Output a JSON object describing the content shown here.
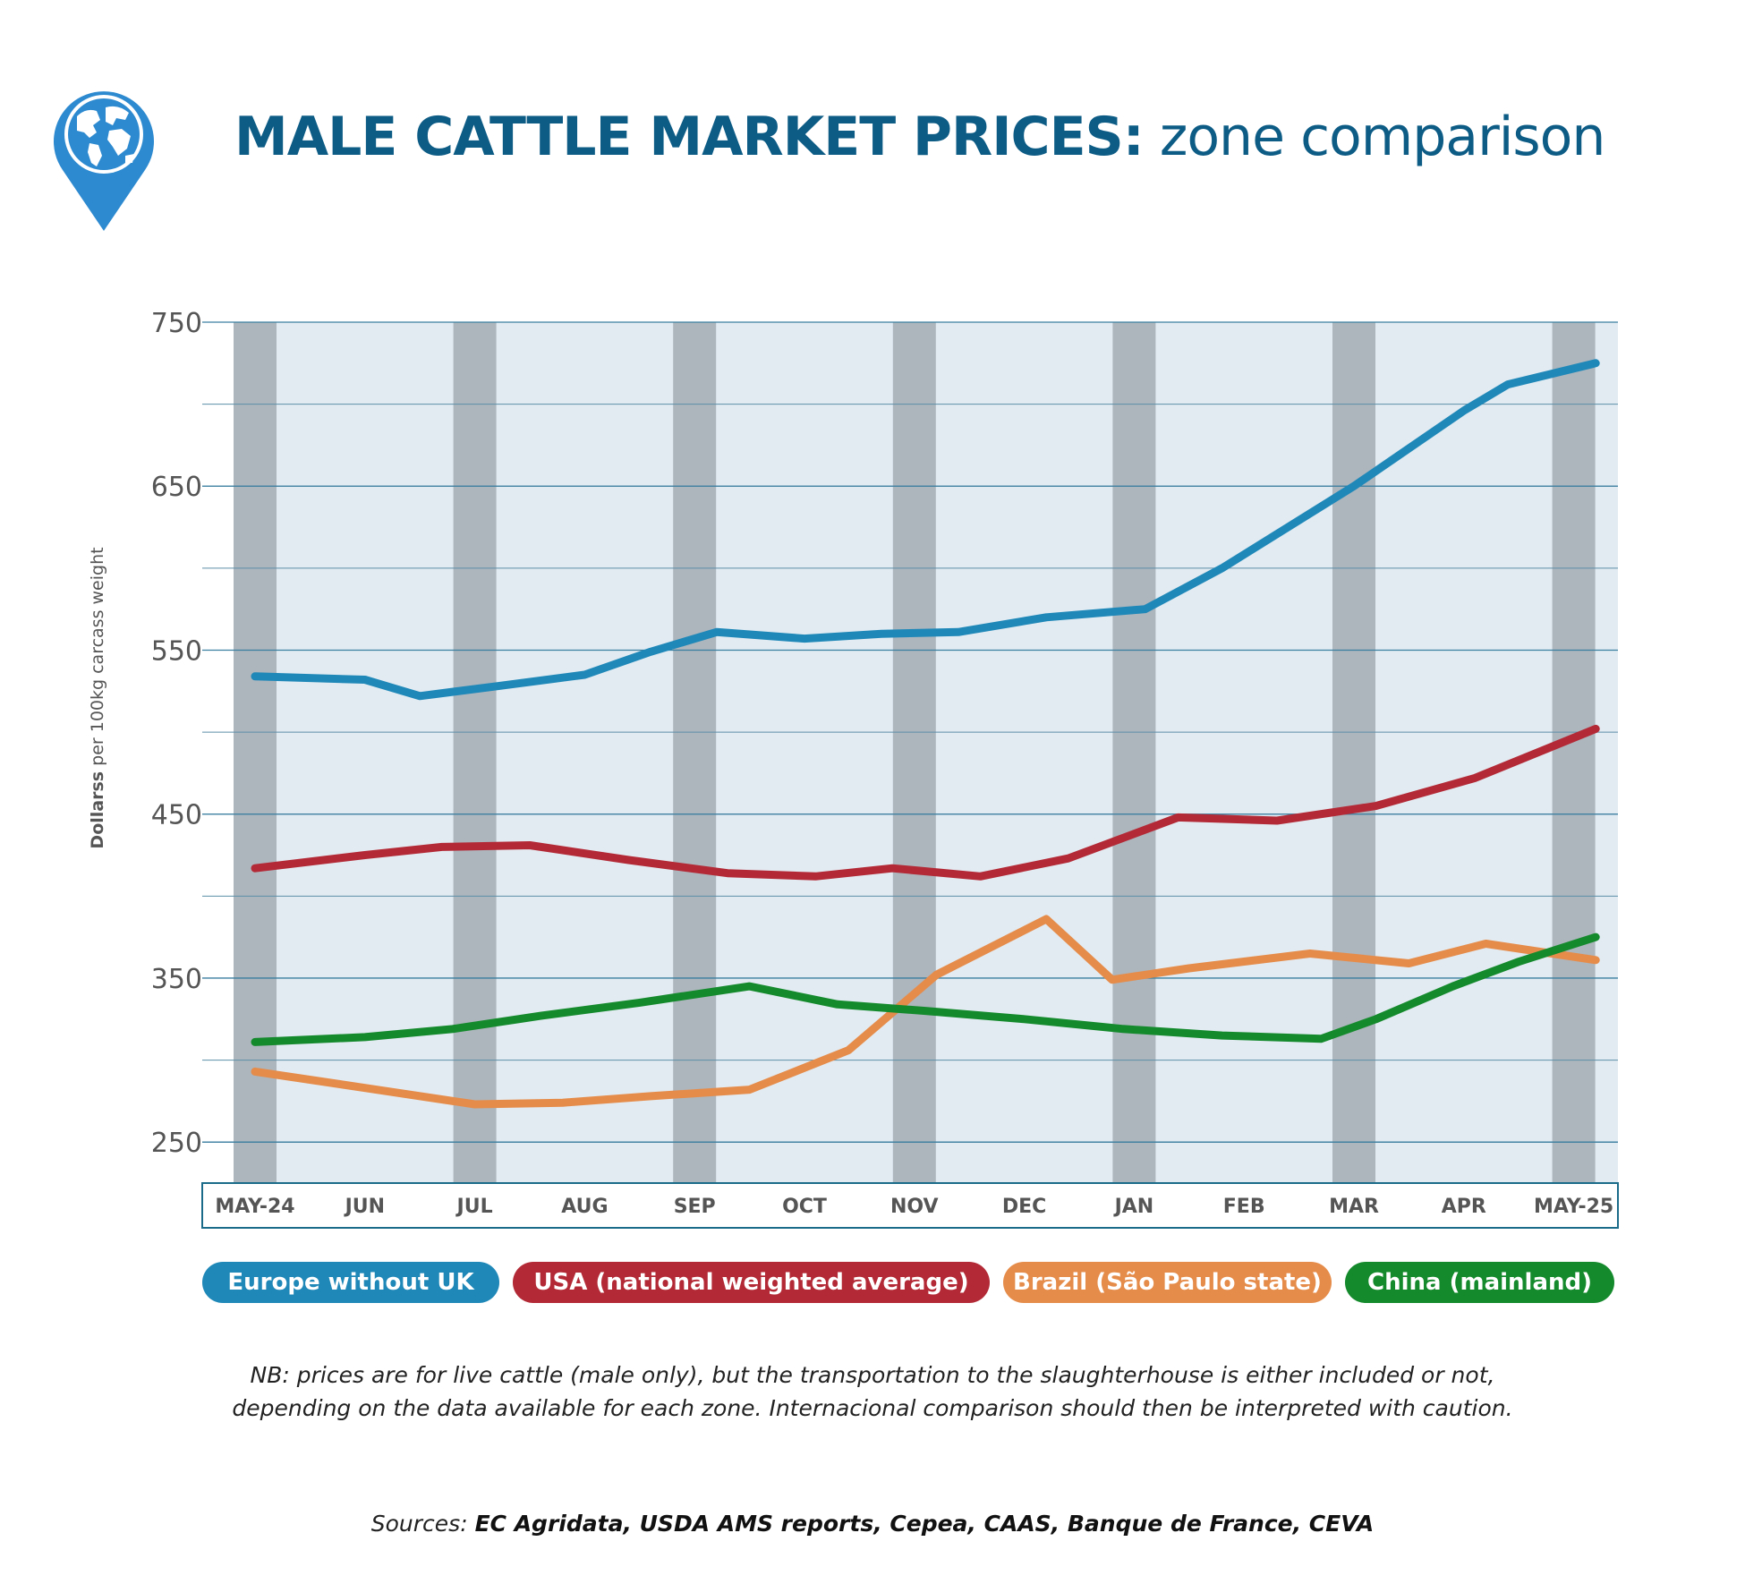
{
  "title": {
    "bold": "MALE CATTLE MARKET PRICES:",
    "rest": " zone comparison"
  },
  "logo": {
    "icon": "globe-pin-icon",
    "color": "#2d8ad0"
  },
  "chart_data": {
    "type": "line",
    "title": "MALE CATTLE MARKET PRICES: zone comparison",
    "xlabel": "",
    "ylabel_bold": "Dollarss",
    "ylabel_rest": " per 100kg carcass weight",
    "ylim": [
      225,
      750
    ],
    "yticks": [
      250,
      350,
      450,
      550,
      650,
      750
    ],
    "grid": true,
    "categories": [
      "MAY-24",
      "JUN",
      "JUL",
      "AUG",
      "SEP",
      "OCT",
      "NOV",
      "DEC",
      "JAN",
      "FEB",
      "MAR",
      "APR",
      "MAY-25"
    ],
    "series": [
      {
        "name": "Europe without UK",
        "color": "#1f88b8",
        "x": [
          0,
          1,
          1.5,
          2.2,
          3,
          3.6,
          4.2,
          5,
          5.7,
          6.4,
          7.2,
          8.1,
          8.8,
          10,
          11,
          11.4,
          12.2
        ],
        "values": [
          534,
          532,
          522,
          528,
          535,
          549,
          561,
          557,
          560,
          561,
          570,
          575,
          600,
          650,
          696,
          712,
          725
        ]
      },
      {
        "name": "USA (national weighted average)",
        "color": "#b32a36",
        "x": [
          0,
          1,
          1.7,
          2.5,
          3.4,
          4.3,
          5.1,
          5.8,
          6.6,
          7.4,
          8.4,
          9.3,
          10.2,
          11.1,
          12.2
        ],
        "values": [
          417,
          425,
          430,
          431,
          422,
          414,
          412,
          417,
          412,
          423,
          448,
          446,
          455,
          472,
          502
        ]
      },
      {
        "name": "Brazil (São Paulo state)",
        "color": "#e68c4a",
        "x": [
          0,
          1,
          2,
          2.8,
          3.6,
          4.5,
          5.4,
          6.2,
          7.2,
          7.8,
          8.5,
          9.6,
          10.5,
          11.2,
          12.2
        ],
        "values": [
          293,
          283,
          273,
          274,
          278,
          282,
          306,
          352,
          386,
          349,
          356,
          365,
          359,
          371,
          361
        ]
      },
      {
        "name": "China (mainland)",
        "color": "#158a2d",
        "x": [
          0,
          1,
          1.8,
          2.6,
          3.5,
          4.5,
          5.3,
          6.1,
          7.0,
          7.9,
          8.8,
          9.7,
          10.2,
          10.9,
          11.5,
          12.2
        ],
        "values": [
          311,
          314,
          319,
          327,
          335,
          345,
          334,
          330,
          325,
          319,
          315,
          313,
          325,
          345,
          360,
          375
        ]
      }
    ]
  },
  "legend": [
    "Europe without UK",
    "USA (national weighted average)",
    "Brazil (São Paulo state)",
    "China (mainland)"
  ],
  "note": {
    "line1": "NB: prices are for live cattle (male only), but the transportation to the slaughterhouse is either included or not,",
    "line2": "depending on the data available for each zone. Internacional comparison should then be interpreted with caution."
  },
  "sources": {
    "prefix": "Sources: ",
    "list": "EC Agridata, USDA AMS reports, Cepea, CAAS, Banque de France, CEVA"
  }
}
